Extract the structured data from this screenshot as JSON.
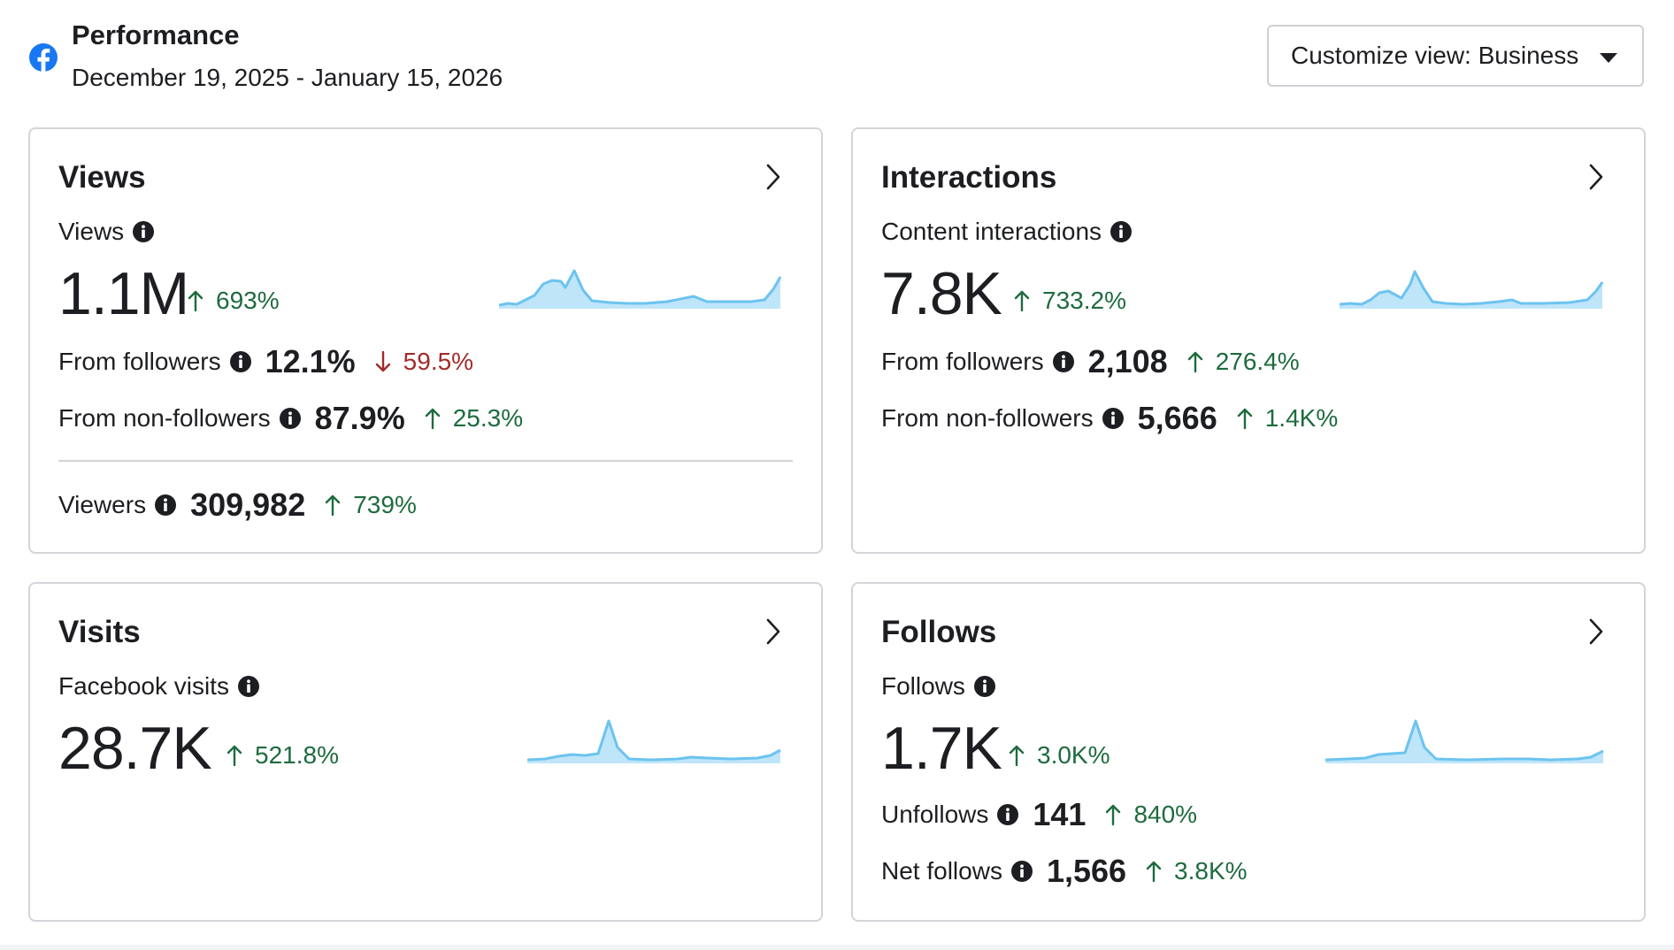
{
  "header": {
    "title": "Performance",
    "date_range": "December 19, 2025 - January 15, 2026",
    "customize_label": "Customize view: Business"
  },
  "colors": {
    "up": "#1e6b3e",
    "down": "#a12b2b",
    "spark_line": "#6cc3f0",
    "spark_fill": "#bfe5f9",
    "brand": "#1877f2"
  },
  "cards": {
    "views": {
      "title": "Views",
      "metric_label": "Views",
      "value": "1.1M",
      "change": "693%",
      "rows": [
        {
          "label": "From followers",
          "value": "12.1%",
          "change": "59.5%",
          "direction": "down"
        },
        {
          "label": "From non-followers",
          "value": "87.9%",
          "change": "25.3%",
          "direction": "up"
        },
        {
          "label": "Viewers",
          "value": "309,982",
          "change": "739%",
          "direction": "up"
        }
      ]
    },
    "interactions": {
      "title": "Interactions",
      "metric_label": "Content interactions",
      "value": "7.8K",
      "change": "733.2%",
      "rows": [
        {
          "label": "From followers",
          "value": "2,108",
          "change": "276.4%",
          "direction": "up"
        },
        {
          "label": "From non-followers",
          "value": "5,666",
          "change": "1.4K%",
          "direction": "up"
        }
      ]
    },
    "visits": {
      "title": "Visits",
      "metric_label": "Facebook visits",
      "value": "28.7K",
      "change": "521.8%"
    },
    "follows": {
      "title": "Follows",
      "metric_label": "Follows",
      "value": "1.7K",
      "change": "3.0K%",
      "rows": [
        {
          "label": "Unfollows",
          "value": "141",
          "change": "840%",
          "direction": "up"
        },
        {
          "label": "Net follows",
          "value": "1,566",
          "change": "3.8K%",
          "direction": "up"
        }
      ]
    }
  },
  "icons": [
    "facebook-logo-icon",
    "caret-down-icon",
    "chevron-right-icon",
    "info-icon",
    "arrow-up-icon",
    "arrow-down-icon"
  ]
}
